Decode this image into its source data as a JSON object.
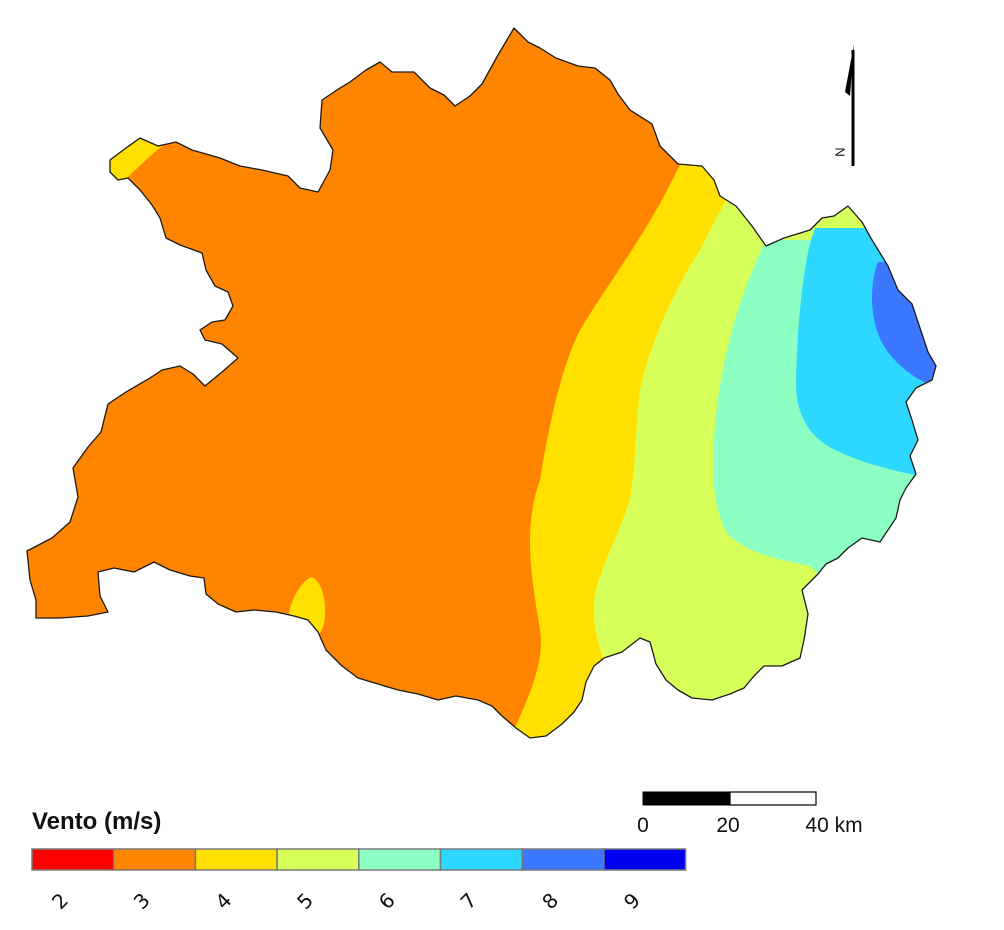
{
  "legend": {
    "title": "Vento (m/s)",
    "classes": [
      {
        "label": "2",
        "color": "#FF0000"
      },
      {
        "label": "3",
        "color": "#FF8400"
      },
      {
        "label": "4",
        "color": "#FFE000"
      },
      {
        "label": "5",
        "color": "#D7FF5A"
      },
      {
        "label": "6",
        "color": "#8CFFC3"
      },
      {
        "label": "7",
        "color": "#2DD7FF"
      },
      {
        "label": "8",
        "color": "#3C78FF"
      },
      {
        "label": "9",
        "color": "#0000F0"
      }
    ]
  },
  "scale_bar": {
    "labels": [
      "0",
      "20",
      "40 km"
    ]
  },
  "north_arrow": {
    "letter": "N"
  }
}
